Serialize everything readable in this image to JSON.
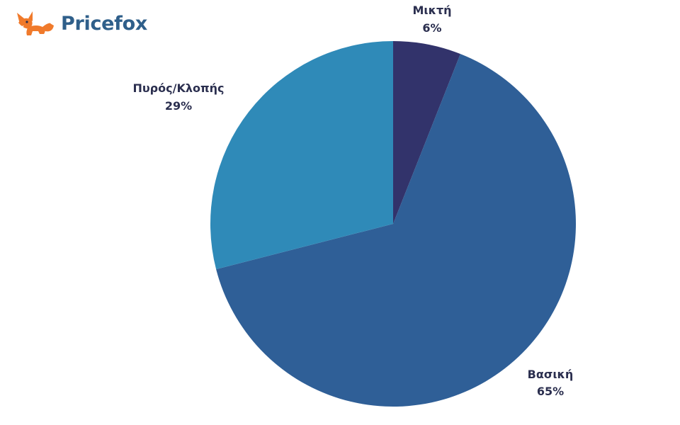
{
  "brand": {
    "name": "Pricefox",
    "logo_icon": "fox-icon",
    "color": "#2f5f8a",
    "icon_color": "#f07a2b"
  },
  "chart_data": {
    "type": "pie",
    "title": "",
    "start_angle_deg": 0,
    "direction": "clockwise",
    "slices": [
      {
        "label": "Μικτή",
        "value": 6,
        "value_label": "6%",
        "color": "#32336b"
      },
      {
        "label": "Βασική",
        "value": 65,
        "value_label": "65%",
        "color": "#2f5f97"
      },
      {
        "label": "Πυρός/Κλοπής",
        "value": 29,
        "value_label": "29%",
        "color": "#2f8ab8"
      }
    ]
  }
}
